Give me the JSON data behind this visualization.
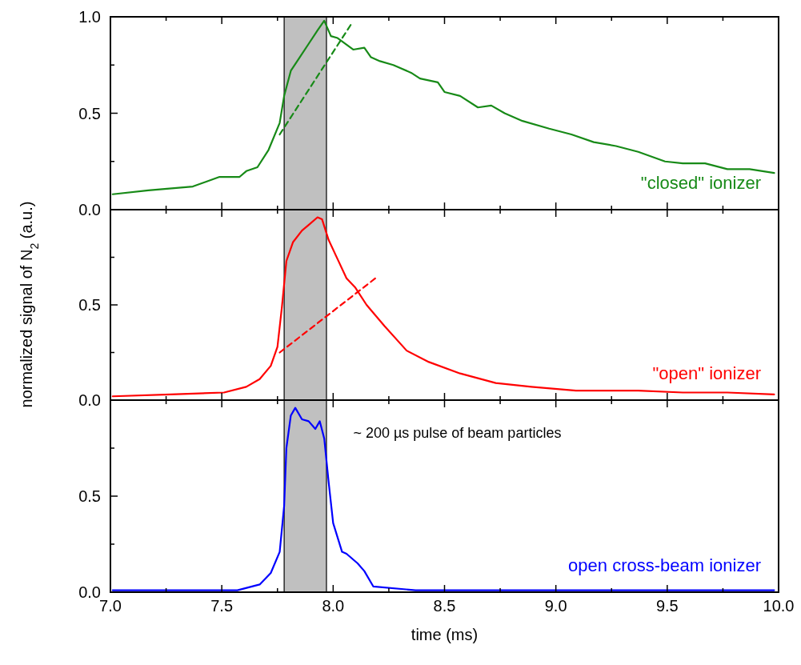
{
  "chart_data": [
    {
      "type": "line",
      "xlim": [
        7.0,
        10.0
      ],
      "xticks": [
        {
          "value": 7,
          "label": null
        },
        {
          "value": 7.25,
          "label": null
        },
        {
          "value": 7.5,
          "label": null
        },
        {
          "value": 7.75,
          "label": null
        },
        {
          "value": 8,
          "label": null
        },
        {
          "value": 8.25,
          "label": null
        },
        {
          "value": 8.5,
          "label": null
        },
        {
          "value": 8.75,
          "label": null
        },
        {
          "value": 9,
          "label": null
        },
        {
          "value": 9.25,
          "label": null
        },
        {
          "value": 9.5,
          "label": null
        },
        {
          "value": 9.75,
          "label": null
        },
        {
          "value": 10,
          "label": null
        }
      ],
      "ylim": [
        0,
        1.0
      ],
      "yticks": [
        {
          "value": 0,
          "label": "0.0"
        },
        {
          "value": 0.25,
          "label": null
        },
        {
          "value": 0.5,
          "label": "0.5"
        },
        {
          "value": 0.75,
          "label": null
        },
        {
          "value": 1,
          "label": "1.0"
        }
      ],
      "tick_labels": "y",
      "bands": [
        {
          "axis": "x",
          "from": 7.78,
          "to": 7.97,
          "color": "#c0c0c0"
        }
      ],
      "series": [
        {
          "name": "\"closed\" ionizer",
          "color": "#178a17",
          "x": [
            7.01,
            7.17,
            7.37,
            7.49,
            7.58,
            7.61,
            7.66,
            7.71,
            7.76,
            7.78,
            7.81,
            7.85,
            7.89,
            7.93,
            7.96,
            7.99,
            8.02,
            8.09,
            8.14,
            8.17,
            8.21,
            8.27,
            8.35,
            8.39,
            8.47,
            8.5,
            8.57,
            8.65,
            8.71,
            8.77,
            8.85,
            8.97,
            9.07,
            9.17,
            9.27,
            9.37,
            9.49,
            9.57,
            9.67,
            9.77,
            9.87,
            9.98
          ],
          "values": [
            0.08,
            0.1,
            0.12,
            0.17,
            0.17,
            0.2,
            0.22,
            0.31,
            0.45,
            0.59,
            0.72,
            0.79,
            0.86,
            0.93,
            0.98,
            0.9,
            0.89,
            0.83,
            0.84,
            0.79,
            0.77,
            0.75,
            0.71,
            0.68,
            0.66,
            0.61,
            0.59,
            0.53,
            0.54,
            0.5,
            0.46,
            0.42,
            0.39,
            0.35,
            0.33,
            0.3,
            0.25,
            0.24,
            0.24,
            0.21,
            0.21,
            0.19
          ]
        },
        {
          "color": "#178a17",
          "line_style": "dashed",
          "x": [
            7.76,
            8.08
          ],
          "values": [
            0.39,
            0.96
          ]
        }
      ]
    },
    {
      "type": "line",
      "xlim": [
        7.0,
        10.0
      ],
      "xticks": [
        {
          "value": 7,
          "label": null
        },
        {
          "value": 7.25,
          "label": null
        },
        {
          "value": 7.5,
          "label": null
        },
        {
          "value": 7.75,
          "label": null
        },
        {
          "value": 8,
          "label": null
        },
        {
          "value": 8.25,
          "label": null
        },
        {
          "value": 8.5,
          "label": null
        },
        {
          "value": 8.75,
          "label": null
        },
        {
          "value": 9,
          "label": null
        },
        {
          "value": 9.25,
          "label": null
        },
        {
          "value": 9.5,
          "label": null
        },
        {
          "value": 9.75,
          "label": null
        },
        {
          "value": 10,
          "label": null
        }
      ],
      "ylim": [
        0,
        1.0
      ],
      "yticks": [
        {
          "value": 0,
          "label": "0.0"
        },
        {
          "value": 0.25,
          "label": null
        },
        {
          "value": 0.5,
          "label": "0.5"
        },
        {
          "value": 0.75,
          "label": null
        },
        {
          "value": 1.0,
          "label": null
        }
      ],
      "tick_labels": "y",
      "ylabel": "normalized signal of N$_{2}$ (a.u.)",
      "bands": [
        {
          "axis": "x",
          "from": 7.78,
          "to": 7.97,
          "color": "#c0c0c0"
        }
      ],
      "series": [
        {
          "name": "\"open\" ionizer",
          "color": "#ff0000",
          "x": [
            7.01,
            7.27,
            7.51,
            7.61,
            7.67,
            7.72,
            7.75,
            7.77,
            7.79,
            7.82,
            7.86,
            7.89,
            7.93,
            7.95,
            7.98,
            8.02,
            8.06,
            8.1,
            8.15,
            8.23,
            8.33,
            8.43,
            8.57,
            8.73,
            8.89,
            9.09,
            9.37,
            9.57,
            9.77,
            9.98
          ],
          "values": [
            0.02,
            0.03,
            0.04,
            0.07,
            0.11,
            0.18,
            0.28,
            0.49,
            0.73,
            0.83,
            0.89,
            0.92,
            0.96,
            0.95,
            0.84,
            0.74,
            0.64,
            0.59,
            0.5,
            0.39,
            0.26,
            0.2,
            0.14,
            0.09,
            0.07,
            0.05,
            0.05,
            0.04,
            0.04,
            0.03
          ]
        },
        {
          "color": "#ff0000",
          "line_style": "dashed",
          "x": [
            7.76,
            8.19
          ],
          "values": [
            0.25,
            0.64
          ]
        }
      ]
    },
    {
      "type": "line",
      "xlim": [
        7.0,
        10.0
      ],
      "xticks": [
        {
          "value": 7,
          "label": "7.0"
        },
        {
          "value": 7.25,
          "label": null
        },
        7.5,
        {
          "value": 7.75,
          "label": null
        },
        {
          "value": 8,
          "label": "8.0"
        },
        {
          "value": 8.25,
          "label": null
        },
        8.5,
        {
          "value": 8.75,
          "label": null
        },
        {
          "value": 9,
          "label": "9.0"
        },
        {
          "value": 9.25,
          "label": null
        },
        9.5,
        {
          "value": 9.75,
          "label": null
        },
        {
          "value": 10,
          "label": "10.0"
        }
      ],
      "ylim": [
        0,
        1.0
      ],
      "yticks": [
        {
          "value": 0,
          "label": "0.0"
        },
        {
          "value": 0.25,
          "label": null
        },
        {
          "value": 0.5,
          "label": "0.5"
        },
        {
          "value": 0.75,
          "label": null
        },
        {
          "value": 1.0,
          "label": null
        }
      ],
      "xlabel": "time (ms)",
      "bands": [
        {
          "axis": "x",
          "from": 7.78,
          "to": 7.97,
          "color": "#c0c0c0"
        }
      ],
      "annotations": [
        "~ 200 µs pulse of beam particles"
      ],
      "series": [
        {
          "name": "open cross-beam ionizer",
          "color": "#0000ff",
          "x": [
            7.01,
            7.3,
            7.57,
            7.67,
            7.72,
            7.76,
            7.78,
            7.79,
            7.81,
            7.83,
            7.86,
            7.89,
            7.92,
            7.94,
            7.96,
            7.98,
            8.0,
            8.04,
            8.06,
            8.11,
            8.14,
            8.18,
            8.37,
            8.7,
            9.0,
            9.5,
            9.98
          ],
          "values": [
            0.01,
            0.01,
            0.01,
            0.04,
            0.1,
            0.21,
            0.45,
            0.75,
            0.92,
            0.96,
            0.9,
            0.89,
            0.85,
            0.89,
            0.8,
            0.57,
            0.36,
            0.21,
            0.2,
            0.15,
            0.11,
            0.03,
            0.01,
            0.01,
            0.01,
            0.01,
            0.01
          ]
        }
      ]
    }
  ]
}
